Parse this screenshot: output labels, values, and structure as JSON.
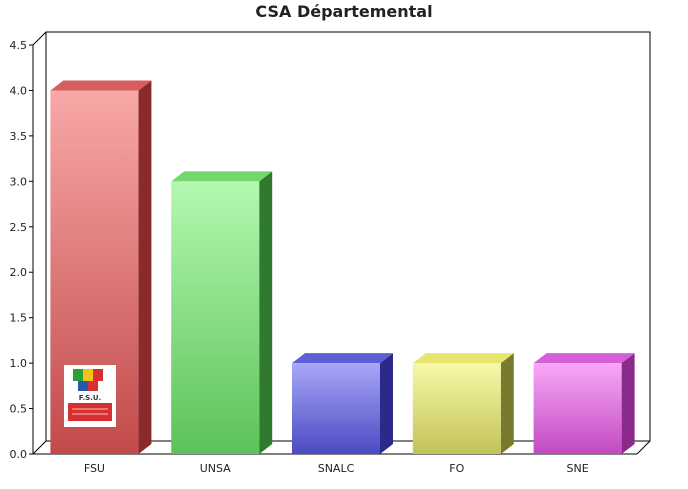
{
  "chart_data": {
    "type": "bar",
    "title": "CSA Départemental",
    "xlabel": "",
    "ylabel": "",
    "categories": [
      "FSU",
      "UNSA",
      "SNALC",
      "FO",
      "SNE"
    ],
    "values": [
      4,
      3,
      1,
      1,
      1
    ],
    "ylim": [
      0,
      4.5
    ],
    "yticks": [
      "0.0",
      "0.5",
      "1.0",
      "1.5",
      "2.0",
      "2.5",
      "3.0",
      "3.5",
      "4.0",
      "4.5"
    ],
    "grid": false,
    "legend": "none",
    "bar_colors": [
      {
        "light": "#f8a8a8",
        "dark": "#c24a4a",
        "side": "#8a2a2a",
        "top": "#d65e5e"
      },
      {
        "light": "#b4f8b0",
        "dark": "#5cc25a",
        "side": "#2f7a2f",
        "top": "#72d86e"
      },
      {
        "light": "#a8a8f8",
        "dark": "#4a4ac2",
        "side": "#2a2a8a",
        "top": "#5e5ed6"
      },
      {
        "light": "#f8f8a8",
        "dark": "#c2c25a",
        "side": "#7a7a2f",
        "top": "#e6e66e"
      },
      {
        "light": "#f8a8f8",
        "dark": "#c24ac2",
        "side": "#8a2a8a",
        "top": "#d65ed6"
      }
    ]
  },
  "logo": {
    "icon": "fsu-logo-icon",
    "text": "F.S.U."
  }
}
